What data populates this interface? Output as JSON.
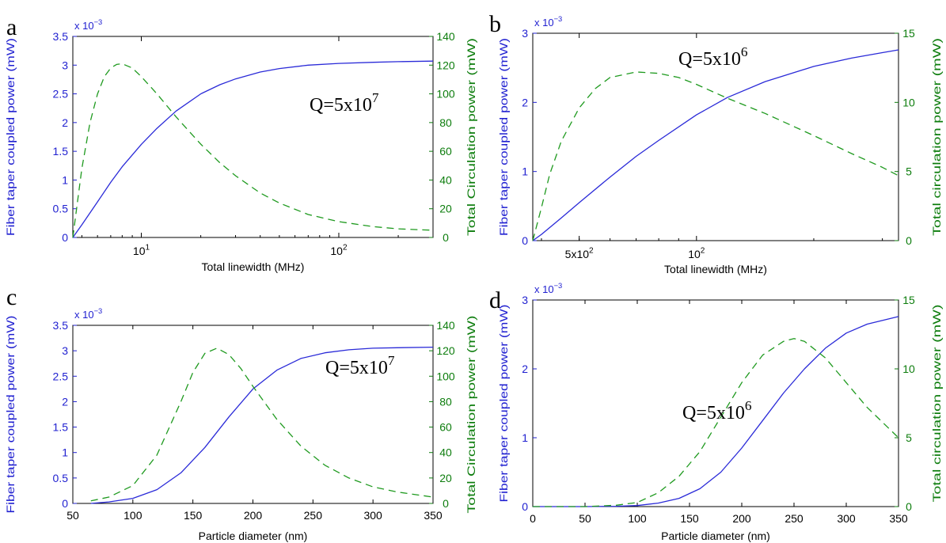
{
  "colors": {
    "left_axis": "#1f1fd0",
    "right_axis": "#0d7d0d",
    "solid_line": "#2a2ad8",
    "dashed_line": "#1f9a1f",
    "axes": "#000000"
  },
  "chart_data": [
    {
      "panel_label": "a",
      "type": "line",
      "xscale": "log",
      "xlim": [
        4.5,
        300
      ],
      "xticks": [
        {
          "v": 10,
          "b": "10",
          "e": "1"
        },
        {
          "v": 100,
          "b": "10",
          "e": "2"
        }
      ],
      "xlabel": "Total linewidth (MHz)",
      "ylabel_left": "Fiber taper coupled power (mW)",
      "ylabel_right": "Total Circulation power (mW)",
      "left_multiplier": "x 10",
      "left_multiplier_exp": "−3",
      "ylim_left": [
        0,
        3.5
      ],
      "yticks_left": [
        "0",
        "0.5",
        "1",
        "1.5",
        "2",
        "2.5",
        "3",
        "3.5"
      ],
      "ylim_right": [
        0,
        140
      ],
      "yticks_right": [
        "0",
        "20",
        "40",
        "60",
        "80",
        "100",
        "120",
        "140"
      ],
      "annotation": "Q=5x10",
      "annotation_exp": "7",
      "series": [
        {
          "style": "solid",
          "axis": "left",
          "x": [
            4.5,
            5,
            6,
            7,
            8,
            10,
            12,
            15,
            20,
            25,
            30,
            40,
            50,
            70,
            100,
            150,
            200,
            300
          ],
          "y": [
            0,
            0.22,
            0.62,
            0.96,
            1.23,
            1.62,
            1.9,
            2.2,
            2.5,
            2.66,
            2.76,
            2.88,
            2.94,
            3.0,
            3.03,
            3.05,
            3.06,
            3.07
          ]
        },
        {
          "style": "dashed",
          "axis": "right",
          "x": [
            4.5,
            5,
            5.5,
            6,
            6.5,
            7,
            7.5,
            8,
            9,
            10,
            12,
            15,
            20,
            25,
            30,
            40,
            50,
            70,
            100,
            150,
            200,
            300
          ],
          "y": [
            0,
            48,
            80,
            100,
            112,
            118,
            120.5,
            121,
            118,
            112,
            100,
            84,
            65,
            52,
            43,
            31,
            24,
            16,
            11,
            7.5,
            6,
            5
          ]
        }
      ]
    },
    {
      "panel_label": "b",
      "type": "line",
      "xscale": "log",
      "xlim": [
        38,
        330
      ],
      "xticks": [
        {
          "v": 50,
          "b": "5x10",
          "e": "2"
        },
        {
          "v": 100,
          "b": "10",
          "e": "2"
        }
      ],
      "xlabel": "Total linewidth (MHz)",
      "ylabel_left": "Fiber taper coupled power (mW)",
      "ylabel_right": "Total circulation power (mW)",
      "left_multiplier": "x 10",
      "left_multiplier_exp": "−3",
      "ylim_left": [
        0,
        3
      ],
      "yticks_left": [
        "0",
        "1",
        "2",
        "3"
      ],
      "ylim_right": [
        0,
        15
      ],
      "yticks_right": [
        "0",
        "5",
        "10",
        "15"
      ],
      "annotation": "Q=5x10",
      "annotation_exp": "6",
      "series": [
        {
          "style": "solid",
          "axis": "left",
          "x": [
            38,
            40,
            45,
            50,
            60,
            70,
            80,
            100,
            120,
            150,
            200,
            250,
            300,
            330
          ],
          "y": [
            0,
            0.09,
            0.33,
            0.55,
            0.92,
            1.22,
            1.45,
            1.82,
            2.07,
            2.3,
            2.52,
            2.64,
            2.72,
            2.76
          ]
        },
        {
          "style": "dashed",
          "axis": "right",
          "x": [
            38,
            40,
            42,
            45,
            50,
            55,
            60,
            70,
            80,
            90,
            100,
            120,
            150,
            200,
            250,
            300,
            330
          ],
          "y": [
            0,
            2.4,
            4.8,
            7.2,
            9.6,
            11,
            11.8,
            12.2,
            12.1,
            11.8,
            11.3,
            10.3,
            9.2,
            7.6,
            6.3,
            5.3,
            4.7
          ]
        }
      ]
    },
    {
      "panel_label": "c",
      "type": "line",
      "xscale": "linear",
      "xlim": [
        50,
        350
      ],
      "xticks": [
        "50",
        "100",
        "150",
        "200",
        "250",
        "300",
        "350"
      ],
      "xlabel": "Particle diameter (nm)",
      "ylabel_left": "Fiber taper coupled power (mW)",
      "ylabel_right": "Total Circulation power (mW)",
      "left_multiplier": "x 10",
      "left_multiplier_exp": "−3",
      "ylim_left": [
        0,
        3.5
      ],
      "yticks_left": [
        "0",
        "0.5",
        "1",
        "1.5",
        "2",
        "2.5",
        "3",
        "3.5"
      ],
      "ylim_right": [
        0,
        140
      ],
      "yticks_right": [
        "0",
        "20",
        "40",
        "60",
        "80",
        "100",
        "120",
        "140"
      ],
      "annotation": "Q=5x10",
      "annotation_exp": "7",
      "series": [
        {
          "style": "solid",
          "axis": "left",
          "x": [
            65,
            80,
            100,
            120,
            140,
            160,
            180,
            200,
            220,
            240,
            260,
            280,
            300,
            320,
            350
          ],
          "y": [
            0,
            0.03,
            0.1,
            0.27,
            0.6,
            1.1,
            1.7,
            2.25,
            2.62,
            2.85,
            2.96,
            3.02,
            3.05,
            3.06,
            3.07
          ]
        },
        {
          "style": "dashed",
          "axis": "right",
          "x": [
            65,
            80,
            100,
            120,
            140,
            150,
            160,
            170,
            180,
            190,
            200,
            220,
            240,
            260,
            280,
            300,
            320,
            350
          ],
          "y": [
            2,
            5,
            14,
            38,
            80,
            103,
            118,
            122,
            117,
            106,
            92,
            66,
            45,
            30,
            20,
            13,
            9,
            5
          ]
        }
      ]
    },
    {
      "panel_label": "d",
      "type": "line",
      "xscale": "linear",
      "xlim": [
        0,
        350
      ],
      "xticks": [
        "0",
        "50",
        "100",
        "150",
        "200",
        "250",
        "300",
        "350"
      ],
      "xlabel": "Particle diameter (nm)",
      "ylabel_left": "Fiber taper coupled power (mW)",
      "ylabel_right": "Total circulation power (mW)",
      "left_multiplier": "x 10",
      "left_multiplier_exp": "−3",
      "ylim_left": [
        0,
        3
      ],
      "yticks_left": [
        "0",
        "1",
        "2",
        "3"
      ],
      "ylim_right": [
        0,
        15
      ],
      "yticks_right": [
        "0",
        "5",
        "10",
        "15"
      ],
      "annotation": "Q=5x10",
      "annotation_exp": "6",
      "series": [
        {
          "style": "solid",
          "axis": "left",
          "x": [
            0,
            50,
            80,
            100,
            120,
            140,
            160,
            180,
            200,
            220,
            240,
            260,
            280,
            300,
            320,
            350
          ],
          "y": [
            0,
            0,
            0.005,
            0.015,
            0.05,
            0.12,
            0.26,
            0.5,
            0.85,
            1.25,
            1.65,
            2.0,
            2.3,
            2.52,
            2.65,
            2.76
          ]
        },
        {
          "style": "dashed",
          "axis": "right",
          "x": [
            0,
            50,
            80,
            100,
            120,
            140,
            160,
            180,
            200,
            220,
            240,
            250,
            260,
            280,
            300,
            320,
            350
          ],
          "y": [
            0,
            0,
            0.1,
            0.3,
            1,
            2.2,
            4,
            6.5,
            9,
            11,
            12,
            12.2,
            12,
            10.8,
            9,
            7.2,
            5
          ]
        }
      ]
    }
  ]
}
